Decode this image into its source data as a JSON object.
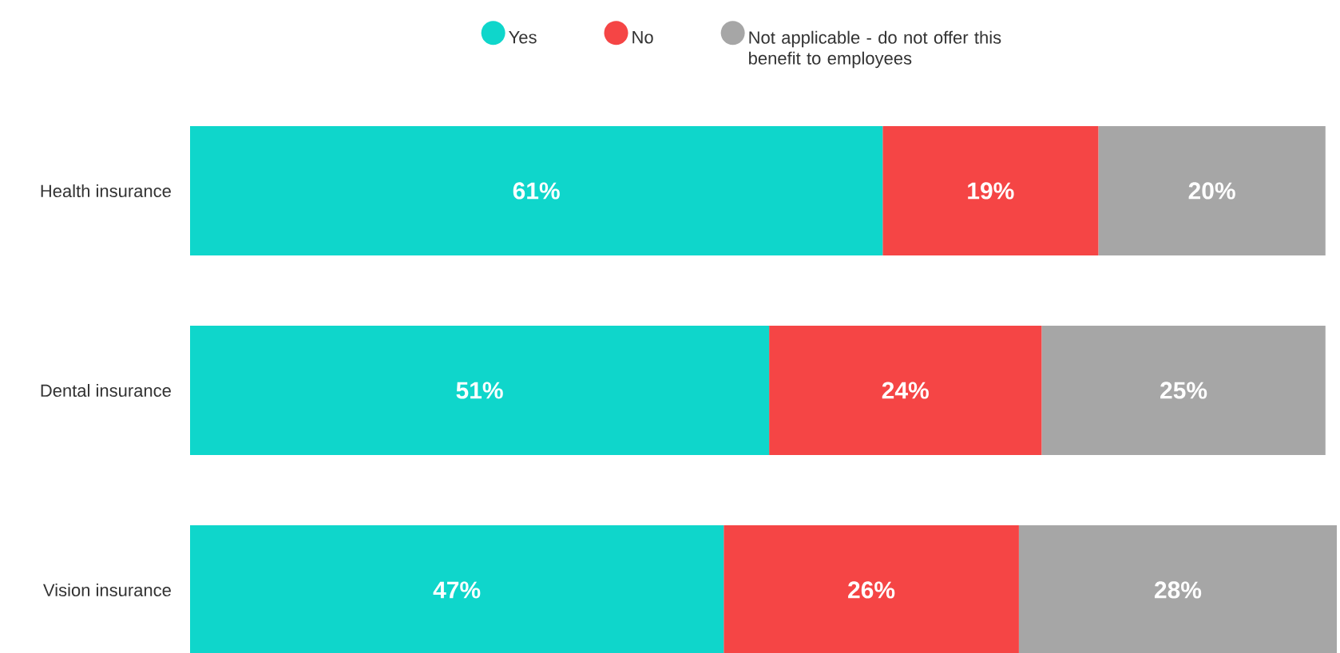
{
  "chart_data": {
    "type": "bar",
    "orientation": "horizontal",
    "stacked": true,
    "categories": [
      "Health insurance",
      "Dental insurance",
      "Vision insurance"
    ],
    "series": [
      {
        "name": "Yes",
        "color": "#0fd6cb",
        "values": [
          61,
          51,
          47
        ],
        "value_labels": [
          "61%",
          "51%",
          "47%"
        ]
      },
      {
        "name": "No",
        "color": "#f54545",
        "values": [
          19,
          24,
          26
        ],
        "value_labels": [
          "19%",
          "24%",
          "26%"
        ]
      },
      {
        "name": "Not applicable - do not offer this benefit to employees",
        "color": "#a6a6a6",
        "values": [
          20,
          25,
          28
        ],
        "value_labels": [
          "20%",
          "25%",
          "28%"
        ]
      }
    ],
    "legend": "top",
    "tick_labels": "y"
  }
}
